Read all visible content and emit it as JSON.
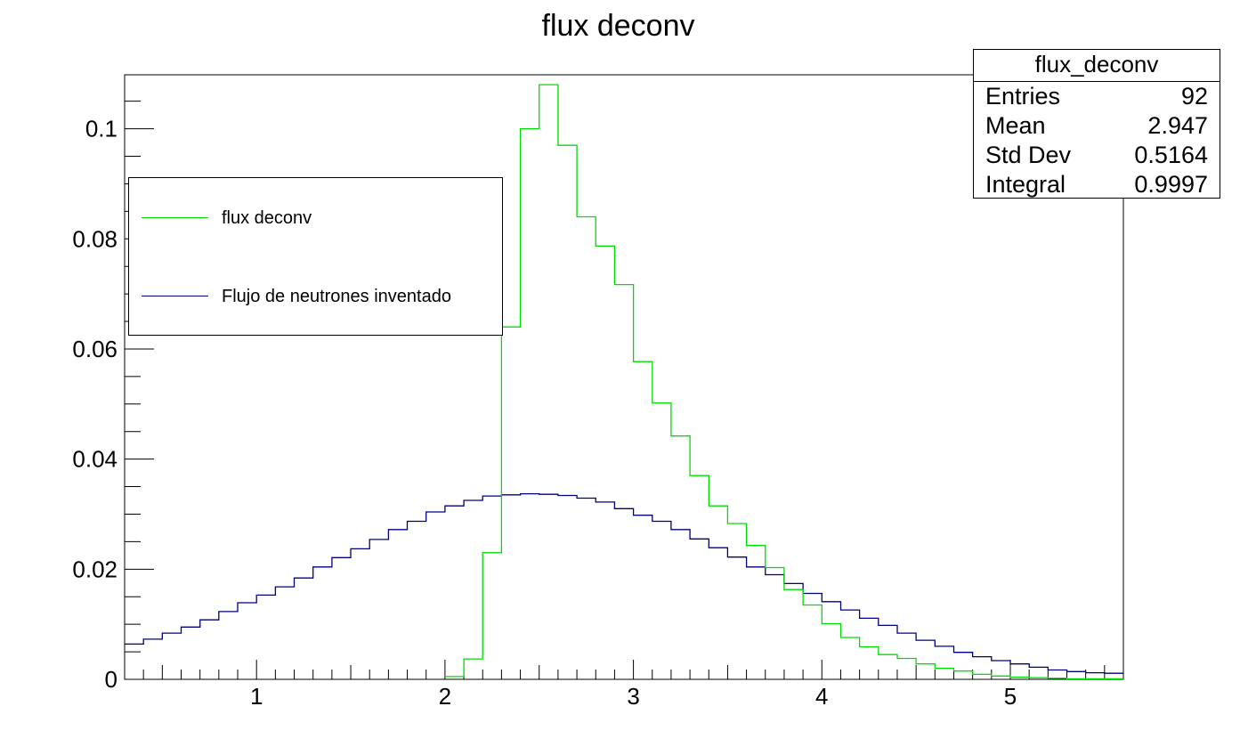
{
  "chart_data": {
    "type": "histogram",
    "title": "flux deconv",
    "xlim": [
      0.3,
      5.6
    ],
    "ylim": [
      0,
      0.1098
    ],
    "bin_width": 0.1,
    "x_ticks": [
      1,
      2,
      3,
      4,
      5
    ],
    "y_ticks": [
      0,
      0.02,
      0.04,
      0.06,
      0.08,
      0.1
    ],
    "x_tick_labels": [
      "1",
      "2",
      "3",
      "4",
      "5"
    ],
    "y_tick_labels": [
      "0",
      "0.02",
      "0.04",
      "0.06",
      "0.08",
      "0.1"
    ],
    "series": [
      {
        "name": "flux deconv",
        "color": "#00dd00",
        "bin_start": 2.0,
        "values": [
          0.0005,
          0.0037,
          0.023,
          0.064,
          0.1,
          0.108,
          0.097,
          0.084,
          0.0787,
          0.0717,
          0.0577,
          0.0502,
          0.0442,
          0.037,
          0.0315,
          0.0283,
          0.0243,
          0.0203,
          0.0163,
          0.0135,
          0.0101,
          0.0076,
          0.0059,
          0.0045,
          0.0038,
          0.0028,
          0.002,
          0.0015,
          0.0009,
          0.0006,
          0.0004,
          0.0003,
          0.0002,
          0.0001,
          0.0001,
          0.0001
        ]
      },
      {
        "name": "Flujo de neutrones inventado",
        "color": "#00007f",
        "bin_start": 0.3,
        "values": [
          0.0064,
          0.0073,
          0.0084,
          0.0095,
          0.0108,
          0.0123,
          0.0139,
          0.0153,
          0.0168,
          0.0184,
          0.0204,
          0.0221,
          0.0237,
          0.0254,
          0.0272,
          0.0287,
          0.0304,
          0.0315,
          0.0325,
          0.0333,
          0.0335,
          0.0337,
          0.0336,
          0.0334,
          0.0329,
          0.0322,
          0.031,
          0.0298,
          0.0287,
          0.0272,
          0.0255,
          0.0239,
          0.0222,
          0.0204,
          0.019,
          0.0174,
          0.0156,
          0.0141,
          0.0126,
          0.0111,
          0.0098,
          0.0084,
          0.0071,
          0.006,
          0.0049,
          0.0041,
          0.0034,
          0.0028,
          0.0022,
          0.0017,
          0.0014,
          0.0012,
          0.0011
        ]
      }
    ]
  },
  "legend": {
    "items": [
      {
        "label": "flux deconv",
        "color": "#00dd00"
      },
      {
        "label": "Flujo de neutrones inventado",
        "color": "#00007f"
      }
    ]
  },
  "stats": {
    "title": "flux_deconv",
    "rows": [
      {
        "key": "Entries",
        "value": "92"
      },
      {
        "key": "Mean",
        "value": "2.947"
      },
      {
        "key": "Std Dev",
        "value": "0.5164"
      },
      {
        "key": "Integral",
        "value": "0.9997"
      }
    ]
  }
}
